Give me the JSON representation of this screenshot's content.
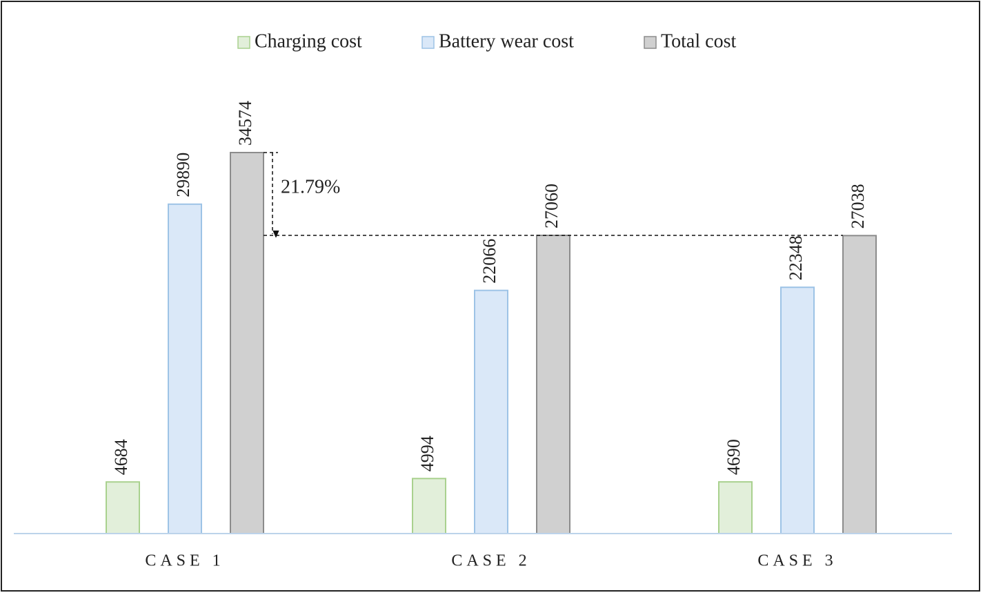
{
  "chart_data": {
    "type": "bar",
    "categories": [
      "CASE 1",
      "CASE 2",
      "CASE 3"
    ],
    "series": [
      {
        "name": "Charging cost",
        "color": "#e2efda",
        "values": [
          4684,
          4994,
          4690
        ]
      },
      {
        "name": "Battery wear cost",
        "color": "#dae8f8",
        "values": [
          29890,
          22066,
          22348
        ]
      },
      {
        "name": "Total cost",
        "color": "#d0d0d0",
        "values": [
          34574,
          27060,
          27038
        ]
      }
    ],
    "annotation": "21.79%",
    "legend": "top"
  }
}
